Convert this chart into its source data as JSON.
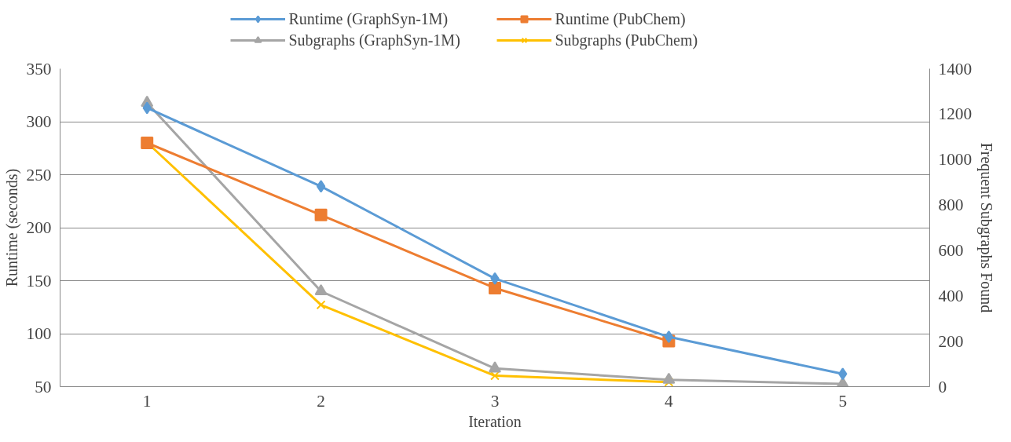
{
  "chart_data": {
    "type": "line",
    "xlabel": "Iteration",
    "ylabel": "Runtime (seconds)",
    "y2label": "Frequent Subgraphs Found",
    "categories": [
      "1",
      "2",
      "3",
      "4",
      "5"
    ],
    "ylim": [
      50,
      350
    ],
    "yticks": [
      50,
      100,
      150,
      200,
      250,
      300,
      350
    ],
    "y2lim": [
      0,
      1400
    ],
    "y2ticks": [
      0,
      200,
      400,
      600,
      800,
      1000,
      1200,
      1400
    ],
    "grid": "y",
    "legend": "top",
    "series": [
      {
        "name": "Runtime (GraphSyn-1M)",
        "color": "#5b9bd5",
        "marker": "diamond",
        "values": [
          313,
          239,
          152,
          97,
          62
        ]
      },
      {
        "name": "Runtime (PubChem)",
        "color": "#ed7d31",
        "marker": "square",
        "values": [
          280,
          212,
          143,
          93,
          null
        ]
      },
      {
        "name": "Subgraphs (GraphSyn-1M)",
        "color": "#a5a5a5",
        "marker": "triangle",
        "axis": "y2",
        "values": [
          1250,
          420,
          80,
          30,
          12
        ]
      },
      {
        "name": "Subgraphs (PubChem)",
        "color": "#ffc000",
        "marker": "cross",
        "axis": "y2",
        "values": [
          1075,
          360,
          48,
          20,
          null
        ]
      }
    ]
  }
}
